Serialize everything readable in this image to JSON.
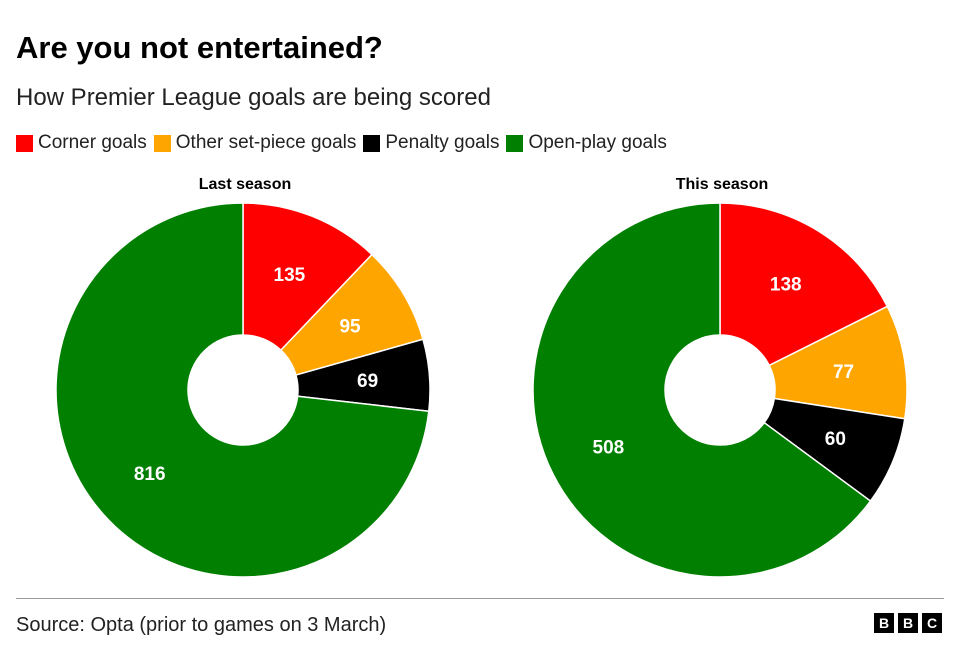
{
  "title": "Are you not entertained?",
  "subtitle": "How Premier League goals are being scored",
  "legend": [
    {
      "label": "Corner goals",
      "color": "#ff0000"
    },
    {
      "label": "Other set-piece goals",
      "color": "#ffa500"
    },
    {
      "label": "Penalty goals",
      "color": "#000000"
    },
    {
      "label": "Open-play goals",
      "color": "#007f00"
    }
  ],
  "chart_data": [
    {
      "type": "pie",
      "variant": "donut",
      "title": "Last season",
      "categories": [
        "Corner goals",
        "Other set-piece goals",
        "Penalty goals",
        "Open-play goals"
      ],
      "values": [
        135,
        95,
        69,
        816
      ],
      "colors": [
        "#ff0000",
        "#ffa500",
        "#000000",
        "#007f00"
      ]
    },
    {
      "type": "pie",
      "variant": "donut",
      "title": "This season",
      "categories": [
        "Corner goals",
        "Other set-piece goals",
        "Penalty goals",
        "Open-play goals"
      ],
      "values": [
        138,
        77,
        60,
        508
      ],
      "colors": [
        "#ff0000",
        "#ffa500",
        "#000000",
        "#007f00"
      ]
    }
  ],
  "source": "Source: Opta (prior to games on 3 March)",
  "logo": [
    "B",
    "B",
    "C"
  ]
}
